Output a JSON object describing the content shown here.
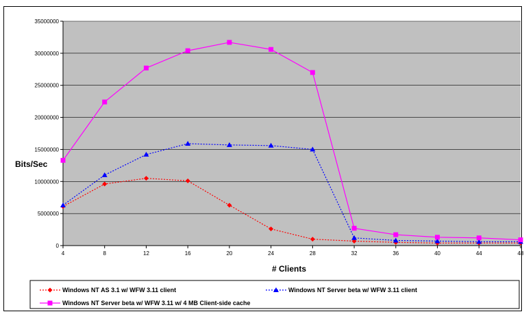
{
  "chart_data": {
    "type": "line",
    "title": "",
    "xlabel": "# Clients",
    "ylabel": "Bits/Sec",
    "x": [
      4,
      8,
      12,
      16,
      20,
      24,
      28,
      32,
      36,
      40,
      44,
      48
    ],
    "xlim": [
      4,
      48
    ],
    "ylim": [
      0,
      35000000
    ],
    "yticks": [
      0,
      5000000,
      10000000,
      15000000,
      20000000,
      25000000,
      30000000,
      35000000
    ],
    "grid": "horizontal",
    "legend_position": "bottom",
    "plot_background": "#c0c0c0",
    "series": [
      {
        "name": "Windows NT AS 3.1 w/ WFW 3.11 client",
        "color": "#ff0000",
        "line_style": "dotted",
        "marker": "diamond",
        "values": [
          6100000,
          9600000,
          10500000,
          10100000,
          6300000,
          2600000,
          1000000,
          700000,
          500000,
          400000,
          400000,
          400000
        ]
      },
      {
        "name": "Windows NT Server beta w/ WFW 3.11 client",
        "color": "#0000ff",
        "line_style": "dotted",
        "marker": "triangle",
        "values": [
          6300000,
          11000000,
          14200000,
          15900000,
          15700000,
          15600000,
          15000000,
          1200000,
          800000,
          700000,
          600000,
          600000
        ]
      },
      {
        "name": "Windows NT Server beta w/ WFW 3.11 w/ 4 MB Client-side cache",
        "color": "#ff00ff",
        "line_style": "solid",
        "marker": "square",
        "values": [
          13300000,
          22400000,
          27700000,
          30400000,
          31700000,
          30600000,
          27000000,
          2700000,
          1700000,
          1300000,
          1200000,
          900000
        ]
      }
    ]
  }
}
